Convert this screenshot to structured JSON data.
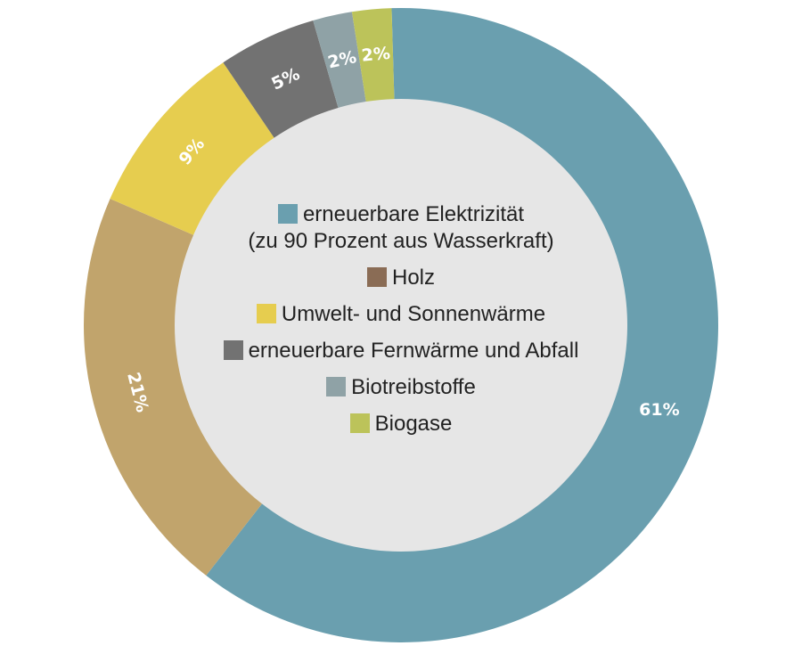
{
  "chart_data": {
    "type": "pie",
    "categories": [
      "erneuerbare Elektrizität\n(zu 90 Prozent aus Wasserkraft)",
      "Holz",
      "Umwelt- und Sonnenwärme",
      "erneuerbare Fernwärme und Abfall",
      "Biotreibstoffe",
      "Biogase"
    ],
    "values": [
      61,
      21,
      9,
      5,
      2,
      2
    ],
    "value_labels": [
      "61%",
      "21%",
      "9%",
      "5%",
      "2%",
      "2%"
    ],
    "colors": [
      "#6a9faf",
      "#c1a46c",
      "#e6cd4f",
      "#727272",
      "#8fa2a6",
      "#bcc35a"
    ],
    "legend_swatch_colors": [
      "#6a9faf",
      "#8a6c55",
      "#e6cd4f",
      "#727272",
      "#8fa2a6",
      "#bcc35a"
    ],
    "legend_position": "center",
    "donut": true
  }
}
